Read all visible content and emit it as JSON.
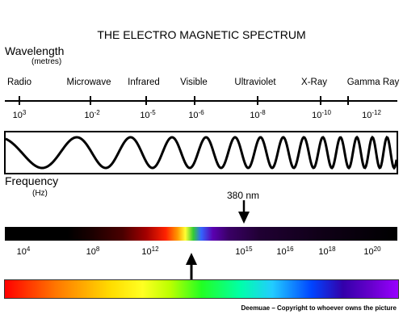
{
  "title": "THE ELECTRO MAGNETIC SPECTRUM",
  "wavelength": {
    "heading": "Wavelength",
    "unit": "(metres)",
    "bands": [
      "Radio",
      "Microwave",
      "Infrared",
      "Visible",
      "Ultraviolet",
      "X-Ray",
      "Gamma Ray"
    ],
    "ticks": [
      {
        "base": "10",
        "exp": "3"
      },
      {
        "base": "10",
        "exp": "-2"
      },
      {
        "base": "10",
        "exp": "-5"
      },
      {
        "base": "10",
        "exp": "-6"
      },
      {
        "base": "10",
        "exp": "-8"
      },
      {
        "base": "10",
        "exp": "-10"
      },
      {
        "base": "10",
        "exp": "-12"
      }
    ]
  },
  "frequency": {
    "heading": "Frequency",
    "unit": "(Hz)",
    "marker_label": "380 nm",
    "ticks": [
      {
        "base": "10",
        "exp": "4"
      },
      {
        "base": "10",
        "exp": "8"
      },
      {
        "base": "10",
        "exp": "12"
      },
      {
        "base": "10",
        "exp": "15"
      },
      {
        "base": "10",
        "exp": "16"
      },
      {
        "base": "10",
        "exp": "18"
      },
      {
        "base": "10",
        "exp": "20"
      }
    ]
  },
  "credit": "Deemuae – Copyright to whoever owns the picture"
}
